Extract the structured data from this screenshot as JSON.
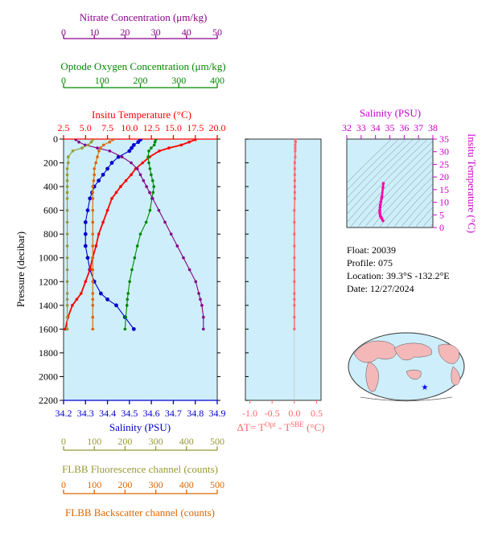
{
  "info": {
    "float": "Float:  20039",
    "profile": "Profile:  075",
    "location": "Location:  39.3°S  -132.2°E",
    "date": "Date:  12/27/2024"
  },
  "colors": {
    "panel_bg": "#cdeefa",
    "salinity": "#0000cc",
    "temperature": "#ff0000",
    "oxygen": "#008800",
    "nitrate": "#880088",
    "fluorescence": "#999933",
    "backscatter": "#dd6600",
    "dt": "#ff6666",
    "ts": "#ff00aa",
    "ts_axis": "#cc00cc",
    "land": "#f4b8b8",
    "marker": "#0000ff"
  },
  "chart_data": [
    {
      "type": "line",
      "panel": "main-profile",
      "ylabel": "Pressure (decibar)",
      "ylim": [
        2200,
        0
      ],
      "yticks": [
        0,
        200,
        400,
        600,
        800,
        1000,
        1200,
        1400,
        1600,
        1800,
        2000,
        2200
      ],
      "axes": [
        {
          "key": "salinity",
          "label": "Salinity (PSU)",
          "range": [
            34.2,
            34.9
          ],
          "ticks": [
            "34.2",
            "34.3",
            "34.4",
            "34.5",
            "34.6",
            "34.7",
            "34.8",
            "34.9"
          ]
        },
        {
          "key": "temperature",
          "label": "Insitu Temperature (°C)",
          "range": [
            2.5,
            20
          ],
          "ticks": [
            "2.5",
            "5.0",
            "7.5",
            "10.0",
            "12.5",
            "15.0",
            "17.5",
            "20.0"
          ]
        },
        {
          "key": "oxygen",
          "label": "Optode Oxygen Concentration (μm/kg)",
          "range": [
            0,
            400
          ],
          "ticks": [
            "0",
            "100",
            "200",
            "300",
            "400"
          ]
        },
        {
          "key": "nitrate",
          "label": "Nitrate Concentration (μm/kg)",
          "range": [
            0,
            50
          ],
          "ticks": [
            "0",
            "10",
            "20",
            "30",
            "40",
            "50"
          ]
        },
        {
          "key": "fluorescence",
          "label": "FLBB Fluorescence channel (counts)",
          "range": [
            0,
            500
          ],
          "ticks": [
            "0",
            "100",
            "200",
            "300",
            "400",
            "500"
          ]
        },
        {
          "key": "backscatter",
          "label": "FLBB Backscatter channel (counts)",
          "range": [
            0,
            500
          ],
          "ticks": [
            "0",
            "100",
            "200",
            "300",
            "400",
            "500"
          ]
        }
      ],
      "series": [
        {
          "key": "salinity",
          "x": [
            34.55,
            34.54,
            34.52,
            34.51,
            34.5,
            34.45,
            34.42,
            34.4,
            34.38,
            34.36,
            34.34,
            34.33,
            34.32,
            34.31,
            34.3,
            34.3,
            34.3,
            34.31,
            34.32,
            34.34,
            34.37,
            34.4,
            34.44,
            34.48,
            34.52
          ],
          "p": [
            5,
            25,
            50,
            75,
            100,
            150,
            200,
            250,
            300,
            350,
            400,
            450,
            500,
            600,
            700,
            800,
            900,
            1000,
            1100,
            1200,
            1300,
            1350,
            1400,
            1500,
            1600
          ]
        },
        {
          "key": "temperature",
          "x": [
            17.5,
            16.8,
            15.9,
            14.5,
            13.4,
            12.3,
            11.5,
            10.7,
            10.2,
            9.6,
            9.0,
            8.5,
            8.0,
            7.5,
            7.0,
            6.5,
            6.2,
            5.8,
            5.5,
            5.0,
            4.5,
            4.0,
            3.5,
            3.0,
            2.7
          ],
          "p": [
            5,
            25,
            50,
            75,
            100,
            150,
            200,
            250,
            300,
            350,
            400,
            450,
            500,
            600,
            700,
            800,
            900,
            1000,
            1100,
            1200,
            1300,
            1350,
            1400,
            1500,
            1600
          ]
        },
        {
          "key": "oxygen",
          "x": [
            240,
            238,
            236,
            228,
            222,
            220,
            222,
            225,
            228,
            232,
            235,
            233,
            230,
            225,
            215,
            200,
            192,
            185,
            178,
            172,
            168,
            166,
            165,
            162,
            160
          ],
          "p": [
            5,
            25,
            50,
            75,
            100,
            150,
            200,
            250,
            300,
            350,
            400,
            450,
            500,
            600,
            700,
            800,
            900,
            1000,
            1100,
            1200,
            1300,
            1350,
            1400,
            1500,
            1600
          ]
        },
        {
          "key": "nitrate",
          "x": [
            4,
            5,
            7,
            11,
            15,
            19,
            22,
            24,
            25,
            26,
            27,
            28,
            29,
            31,
            33,
            35,
            37,
            39,
            41,
            43,
            44,
            44.5,
            45,
            45.5,
            45.5
          ],
          "p": [
            5,
            25,
            50,
            75,
            100,
            150,
            200,
            250,
            300,
            350,
            400,
            450,
            500,
            600,
            700,
            800,
            900,
            1000,
            1100,
            1200,
            1300,
            1350,
            1400,
            1500,
            1600
          ]
        },
        {
          "key": "fluorescence",
          "x": [
            95,
            90,
            80,
            60,
            30,
            15,
            15,
            12,
            12,
            12,
            12,
            12,
            12,
            12,
            12,
            12,
            12,
            12,
            12,
            12,
            12,
            12,
            12,
            12,
            12
          ],
          "p": [
            5,
            25,
            50,
            75,
            100,
            150,
            200,
            250,
            300,
            350,
            400,
            450,
            500,
            600,
            700,
            800,
            900,
            1000,
            1100,
            1200,
            1300,
            1350,
            1400,
            1500,
            1600
          ]
        },
        {
          "key": "backscatter",
          "x": [
            160,
            150,
            130,
            120,
            115,
            110,
            105,
            100,
            100,
            98,
            95,
            95,
            95,
            95,
            95,
            95,
            95,
            95,
            95,
            95,
            95,
            95,
            95,
            95,
            95
          ],
          "p": [
            5,
            25,
            50,
            75,
            100,
            150,
            200,
            250,
            300,
            350,
            400,
            450,
            500,
            600,
            700,
            800,
            900,
            1000,
            1100,
            1200,
            1300,
            1350,
            1400,
            1500,
            1600
          ]
        }
      ]
    },
    {
      "type": "line",
      "panel": "delta-t",
      "xlabel": "ΔT= T^Opt - T^SBE (°C)",
      "xlim": [
        -1.1,
        0.6
      ],
      "xticks": [
        "-1.0",
        "-0.5",
        "0.0",
        "0.5"
      ],
      "ylim": [
        2200,
        0
      ],
      "series": [
        {
          "key": "dt",
          "x": [
            0.02,
            0.03,
            0.02,
            0.02,
            0.02,
            0.02,
            0.01,
            0.01,
            0.01,
            0.01,
            0.01,
            0.01,
            0.01,
            0.0,
            0.0,
            0.0,
            0.0,
            0.0,
            0.0,
            0.0,
            0.0,
            0.0,
            0.0,
            0.0,
            0.0
          ],
          "p": [
            5,
            25,
            50,
            75,
            100,
            150,
            200,
            250,
            300,
            350,
            400,
            450,
            500,
            600,
            700,
            800,
            900,
            1000,
            1100,
            1200,
            1300,
            1350,
            1400,
            1500,
            1600
          ]
        }
      ]
    },
    {
      "type": "scatter",
      "panel": "t-s-diagram",
      "xlabel": "Salinity (PSU)",
      "ylabel": "Insitu Temperature (°C)",
      "xlim": [
        32,
        38
      ],
      "ylim": [
        0,
        35
      ],
      "xticks": [
        "32",
        "33",
        "34",
        "35",
        "36",
        "37",
        "38"
      ],
      "yticks": [
        "0",
        "5",
        "10",
        "15",
        "20",
        "25",
        "30",
        "35"
      ],
      "series": [
        {
          "key": "ts",
          "x": [
            34.55,
            34.52,
            34.45,
            34.42,
            34.38,
            34.34,
            34.32,
            34.3,
            34.3,
            34.31,
            34.34,
            34.4,
            34.44,
            34.52
          ],
          "y": [
            17.5,
            15.9,
            12.3,
            11.5,
            10.2,
            9.0,
            8.0,
            7.0,
            6.2,
            5.5,
            4.5,
            4.0,
            3.5,
            2.7
          ]
        }
      ]
    }
  ]
}
